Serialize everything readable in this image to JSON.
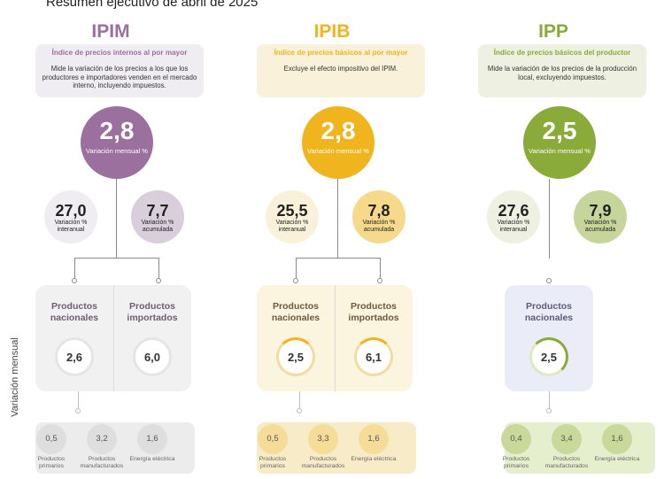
{
  "title": "Resumen ejecutivo de abril de 2025",
  "side_label": "Variación mensual",
  "indices": [
    {
      "code": "IPIM",
      "name": "Índice de precios internos al por mayor",
      "description": "Mide la variación de los precios a los que los productores e importadores venden en el mercado interno, incluyendo impuestos.",
      "monthly": {
        "value": "2,8",
        "label": "Variación mensual %"
      },
      "interannual": {
        "value": "27,0",
        "label": "Variación % interanual"
      },
      "accumulated": {
        "value": "7,7",
        "label": "Variación % acumulada"
      },
      "products": [
        {
          "label": "Productos nacionales",
          "value": "2,6"
        },
        {
          "label": "Productos importados",
          "value": "6,0"
        }
      ],
      "sub": [
        {
          "value": "0,5",
          "label": "Productos primarios"
        },
        {
          "value": "3,2",
          "label": "Productos manufacturados"
        },
        {
          "value": "1,6",
          "label": "Energía eléctrica"
        }
      ],
      "colors": {
        "accent": "#9b6f9e",
        "light": "#d9cedb",
        "soft": "#efedf1",
        "box": "#f1f1f1",
        "ring": "#e5e5e5",
        "bottom": "#ececec",
        "bcircle": "#dedede",
        "title": "#6f5b79"
      }
    },
    {
      "code": "IPIB",
      "name": "Índice de precios básicos al por mayor",
      "description": "Excluye el efecto impositivo del IPIM.",
      "monthly": {
        "value": "2,8",
        "label": "Variación mensual %"
      },
      "interannual": {
        "value": "25,5",
        "label": "Variación % interanual"
      },
      "accumulated": {
        "value": "7,8",
        "label": "Variación % acumulada"
      },
      "products": [
        {
          "label": "Productos nacionales",
          "value": "2,5"
        },
        {
          "label": "Productos importados",
          "value": "6,1"
        }
      ],
      "sub": [
        {
          "value": "0,5",
          "label": "Productos primarios"
        },
        {
          "value": "3,3",
          "label": "Productos manufacturados"
        },
        {
          "value": "1,6",
          "label": "Energía eléctrica"
        }
      ],
      "colors": {
        "accent": "#f0b41e",
        "light": "#f7d98c",
        "soft": "#f9f1da",
        "box": "#fbf4de",
        "ring": "#f2dda0",
        "bottom": "#f8ecc8",
        "bcircle": "#f5dc99",
        "title": "#6a5b3f"
      }
    },
    {
      "code": "IPP",
      "name": "Índice de precios básicos del productor",
      "description": "Mide la variación de los precios de la producción local, excluyendo impuestos.",
      "monthly": {
        "value": "2,5",
        "label": "Variación mensual %"
      },
      "interannual": {
        "value": "27,6",
        "label": "Variación % interanual"
      },
      "accumulated": {
        "value": "7,9",
        "label": "Variación % acumulada"
      },
      "products": [
        {
          "label": "Productos nacionales",
          "value": "2,5"
        }
      ],
      "sub": [
        {
          "value": "0,4",
          "label": "Productos primarios"
        },
        {
          "value": "3,4",
          "label": "Productos manufacturados"
        },
        {
          "value": "1,6",
          "label": "Energía eléctrica"
        }
      ],
      "colors": {
        "accent": "#8aaa3a",
        "light": "#c6d69a",
        "soft": "#eef1e2",
        "box": "#eaedf8",
        "ring": "#dfe8c4",
        "bottom": "#e6efcd",
        "bcircle": "#c8d99a",
        "title": "#5e5a7e"
      }
    }
  ]
}
